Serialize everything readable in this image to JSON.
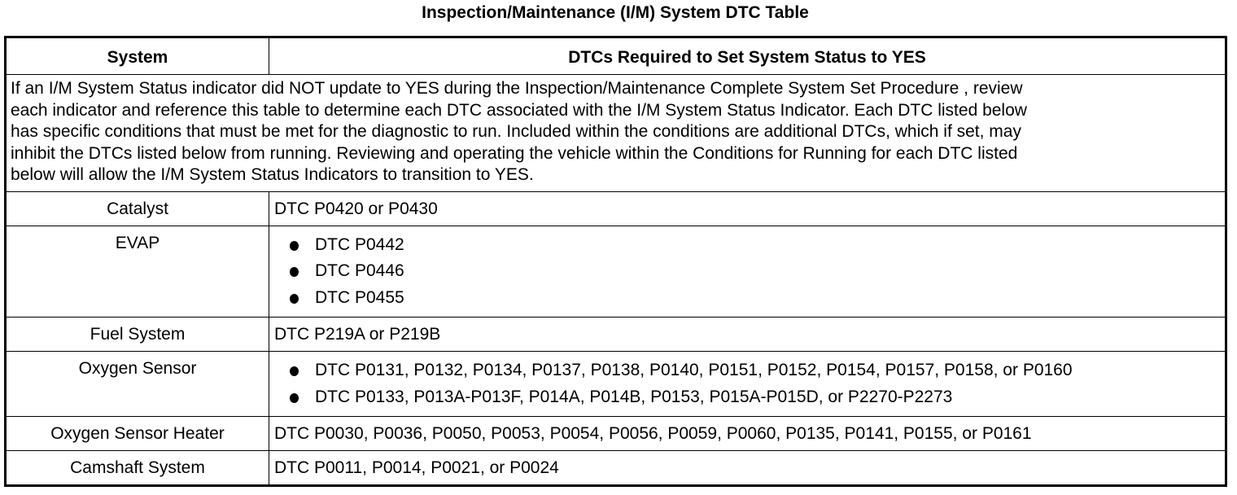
{
  "title": "Inspection/Maintenance (I/M) System DTC Table",
  "table": {
    "headers": [
      "System",
      "DTCs Required to Set System Status to YES"
    ],
    "intro_lines": [
      "If an I/M System Status indicator did NOT update to YES during the Inspection/Maintenance Complete System Set Procedure , review",
      "each indicator and reference this table to determine each DTC associated with the I/M System Status Indicator. Each DTC listed below",
      "has specific conditions that must be met for the diagnostic to run. Included within the conditions are additional DTCs, which if set, may",
      "inhibit the DTCs listed below from running. Reviewing and operating the vehicle within the Conditions for Running for each DTC listed",
      "below will allow the I/M System Status Indicators to transition to YES."
    ],
    "rows": [
      {
        "system": "Catalyst",
        "dtcs": "DTC P0420 or P0430"
      },
      {
        "system": "EVAP",
        "bullets": [
          "DTC P0442",
          "DTC P0446",
          "DTC P0455"
        ]
      },
      {
        "system": "Fuel System",
        "dtcs": "DTC P219A or P219B"
      },
      {
        "system": "Oxygen Sensor",
        "bullets": [
          "DTC P0131, P0132, P0134, P0137, P0138, P0140, P0151, P0152, P0154, P0157, P0158, or P0160",
          "DTC P0133, P013A-P013F, P014A, P014B, P0153, P015A-P015D, or P2270-P2273"
        ]
      },
      {
        "system": "Oxygen Sensor Heater",
        "dtcs": "DTC P0030, P0036, P0050, P0053, P0054, P0056, P0059, P0060, P0135, P0141, P0155, or P0161"
      },
      {
        "system": "Camshaft System",
        "dtcs": "DTC P0011, P0014, P0021, or P0024"
      }
    ]
  }
}
